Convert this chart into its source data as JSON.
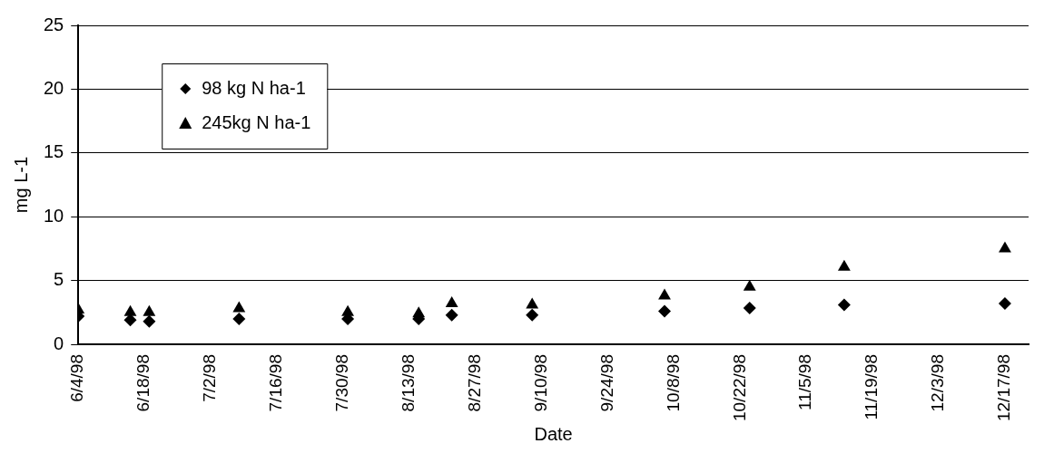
{
  "chart_data": {
    "type": "scatter",
    "xlabel": "Date",
    "ylabel": "mg L-1",
    "x": [
      "1998-06-04",
      "1998-06-15",
      "1998-06-19",
      "1998-07-08",
      "1998-07-31",
      "1998-08-15",
      "1998-08-22",
      "1998-09-08",
      "1998-10-06",
      "1998-10-24",
      "1998-11-13",
      "1998-12-17"
    ],
    "series": [
      {
        "name": "98 kg N ha-1",
        "color": "#000000",
        "marker": "diamond",
        "values": [
          2.2,
          1.9,
          1.8,
          2.0,
          2.0,
          2.0,
          2.3,
          2.3,
          2.6,
          2.85,
          3.1,
          3.2
        ]
      },
      {
        "name": "245kg N ha-1",
        "color": "#000000",
        "marker": "triangle",
        "values": [
          2.7,
          2.5,
          2.5,
          2.8,
          2.5,
          2.4,
          3.2,
          3.1,
          3.8,
          4.5,
          6.05,
          7.5
        ]
      }
    ],
    "xlim": [
      "1998-06-04",
      "1998-12-22"
    ],
    "xticks": [
      {
        "value": "1998-06-04",
        "label": "6/4/98"
      },
      {
        "value": "1998-06-18",
        "label": "6/18/98"
      },
      {
        "value": "1998-07-02",
        "label": "7/2/98"
      },
      {
        "value": "1998-07-16",
        "label": "7/16/98"
      },
      {
        "value": "1998-07-30",
        "label": "7/30/98"
      },
      {
        "value": "1998-08-13",
        "label": "8/13/98"
      },
      {
        "value": "1998-08-27",
        "label": "8/27/98"
      },
      {
        "value": "1998-09-10",
        "label": "9/10/98"
      },
      {
        "value": "1998-09-24",
        "label": "9/24/98"
      },
      {
        "value": "1998-10-08",
        "label": "10/8/98"
      },
      {
        "value": "1998-10-22",
        "label": "10/22/98"
      },
      {
        "value": "1998-11-05",
        "label": "11/5/98"
      },
      {
        "value": "1998-11-19",
        "label": "11/19/98"
      },
      {
        "value": "1998-12-03",
        "label": "12/3/98"
      },
      {
        "value": "1998-12-17",
        "label": "12/17/98"
      }
    ],
    "ylim": [
      0,
      25
    ],
    "yticks": [
      0,
      5,
      10,
      15,
      20,
      25
    ],
    "grid": "y",
    "legend": "top left"
  }
}
